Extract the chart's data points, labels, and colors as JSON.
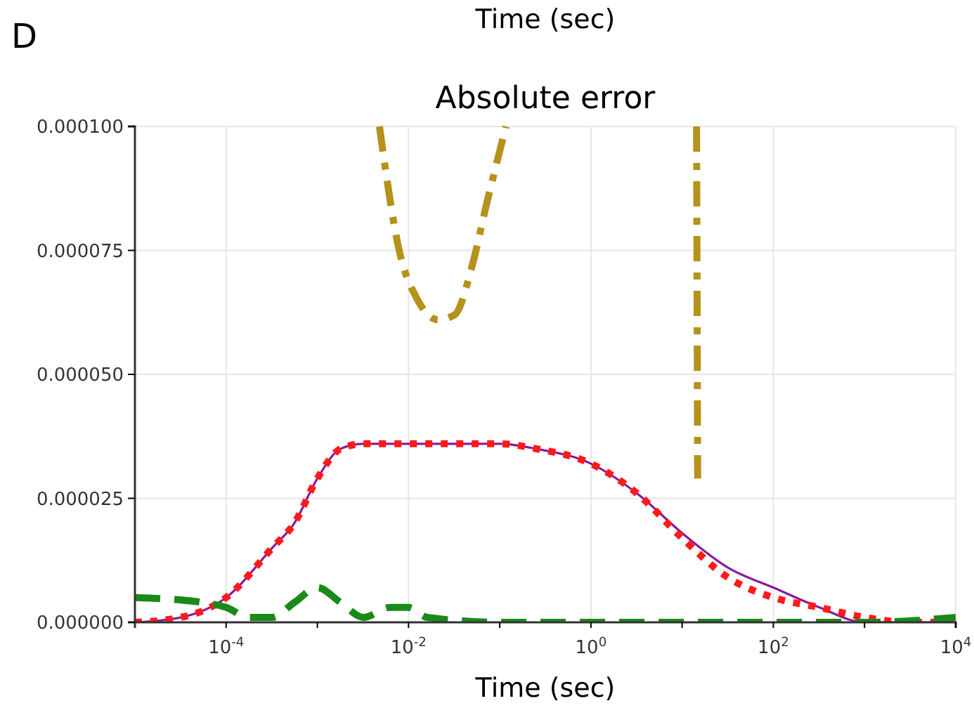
{
  "chart_data": {
    "type": "line",
    "title": "Absolute error",
    "xlabel": "Time (sec)",
    "annotations": [
      "D",
      "Time (sec)"
    ],
    "log": "x",
    "grid": true,
    "marker": "none",
    "xlim": [
      1e-05,
      10000
    ],
    "xticks": [
      {
        "value": 0.0001,
        "label": "10$^{-4}$"
      },
      {
        "value": 0.001,
        "label": null
      },
      {
        "value": 0.01,
        "label": "10$^{-2}$"
      },
      {
        "value": 0.1,
        "label": null
      },
      {
        "value": 1,
        "label": "10$^{0}$"
      },
      {
        "value": 10,
        "label": null
      },
      {
        "value": 100,
        "label": "10$^{2}$"
      },
      {
        "value": 1000,
        "label": null
      },
      {
        "value": 10000,
        "label": "10$^{4}$"
      }
    ],
    "ylim": [
      0,
      0.0001
    ],
    "yticks": [
      {
        "value": 0,
        "label": "0.000000"
      },
      {
        "value": 2.5e-05,
        "label": "0.000025"
      },
      {
        "value": 5e-05,
        "label": "0.000050"
      },
      {
        "value": 7.5e-05,
        "label": "0.000075"
      },
      {
        "value": 0.0001,
        "label": "0.000100"
      }
    ],
    "series": [
      {
        "color": "#8b1a9b",
        "line_style": "solid",
        "x": [
          1e-05,
          3.2e-05,
          0.0001,
          0.00032,
          0.00056,
          0.001,
          0.0018,
          0.0032,
          0.01,
          0.1,
          0.25,
          1,
          3.2,
          10,
          32,
          100,
          320,
          1000,
          3200,
          10000
        ],
        "values": [
          0,
          1e-06,
          5e-06,
          1.5e-05,
          2e-05,
          2.9e-05,
          3.5e-05,
          3.6e-05,
          3.6e-05,
          3.6e-05,
          3.5e-05,
          3.2e-05,
          2.6e-05,
          1.8e-05,
          1.1e-05,
          7e-06,
          3e-06,
          0,
          0,
          0
        ]
      },
      {
        "color": "#ff1a1a",
        "line_style": "dotted",
        "x": [
          1e-05,
          3.2e-05,
          0.0001,
          0.00032,
          0.00056,
          0.001,
          0.0018,
          0.0032,
          0.01,
          0.1,
          0.25,
          1,
          3.2,
          10,
          32,
          100,
          320,
          1000,
          3200,
          10000
        ],
        "values": [
          0,
          1e-06,
          5e-06,
          1.5e-05,
          2e-05,
          2.9e-05,
          3.5e-05,
          3.6e-05,
          3.6e-05,
          3.6e-05,
          3.5e-05,
          3.2e-05,
          2.6e-05,
          1.7e-05,
          9e-06,
          5e-06,
          3e-06,
          1e-06,
          0,
          0
        ]
      },
      {
        "color": "#1a8a1a",
        "line_style": "dashed",
        "x": [
          1e-05,
          5.6e-05,
          0.0001,
          0.00018,
          0.00032,
          0.00056,
          0.001,
          0.0018,
          0.0032,
          0.0063,
          0.01,
          0.016,
          0.1,
          1,
          10,
          100,
          1000,
          10000
        ],
        "values": [
          5e-06,
          4e-06,
          3e-06,
          1e-06,
          1e-06,
          4e-06,
          7e-06,
          4e-06,
          1e-06,
          3e-06,
          3e-06,
          1e-06,
          0,
          0,
          0,
          0,
          0,
          1e-06
        ]
      },
      {
        "color": "#b5921b",
        "line_style": "dashdot",
        "x": [
          0.0048,
          0.0079,
          0.0126,
          0.021,
          0.032,
          0.05,
          0.071,
          0.117,
          1,
          14.4,
          14.8
        ],
        "values": [
          0.0001,
          7.5e-05,
          6.5e-05,
          6.1e-05,
          6.2e-05,
          7.2e-05,
          8.4e-05,
          0.0001,
          null,
          0.0001,
          2.9e-05
        ]
      }
    ]
  }
}
